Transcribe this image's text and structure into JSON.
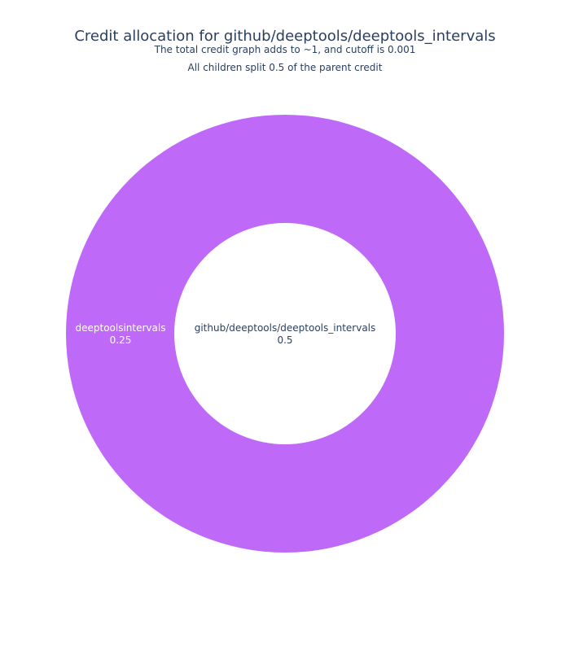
{
  "chart_data": {
    "type": "sunburst",
    "title": "Credit allocation for github/deeptools/deeptools_intervals",
    "subtitle_lines": [
      "The total credit graph adds to ~1, and cutoff is 0.001",
      "All children split 0.5 of the parent credit"
    ],
    "root": {
      "label": "github/deeptools/deeptools_intervals",
      "value": 0.5
    },
    "children": [
      {
        "label": "deeptoolsintervals",
        "value": 0.25,
        "color": "#bf69f9"
      }
    ]
  },
  "colors": {
    "text": "#2a3f5f",
    "ring": "#bf69f9",
    "center": "#ffffff",
    "ring_label": "#ffffff"
  }
}
